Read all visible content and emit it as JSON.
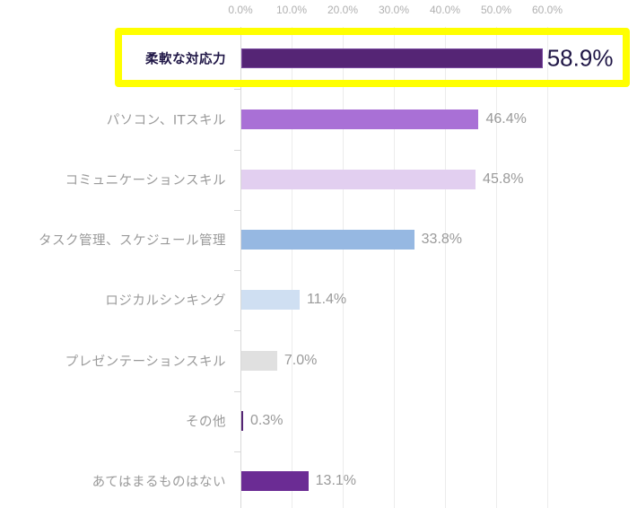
{
  "chart_data": {
    "type": "bar",
    "orientation": "horizontal",
    "title": "",
    "xlabel": "",
    "ylabel": "",
    "xlim": [
      0,
      60
    ],
    "x_ticks": [
      "0.0%",
      "10.0%",
      "20.0%",
      "30.0%",
      "40.0%",
      "50.0%",
      "60.0%"
    ],
    "grid": true,
    "highlighted_category": "柔軟な対応力",
    "categories": [
      "柔軟な対応力",
      "パソコン、ITスキル",
      "コミュニケーションスキル",
      "タスク管理、スケジュール管理",
      "ロジカルシンキング",
      "プレゼンテーションスキル",
      "その他",
      "あてはまるものはない"
    ],
    "values": [
      58.9,
      46.4,
      45.8,
      33.8,
      11.4,
      7.0,
      0.3,
      13.1
    ],
    "value_labels": [
      "58.9%",
      "46.4%",
      "45.8%",
      "33.8%",
      "11.4%",
      "7.0%",
      "0.3%",
      "13.1%"
    ],
    "colors": [
      "#552575",
      "#a970d6",
      "#e2cff0",
      "#96b8e2",
      "#cfdff2",
      "#e0e0e0",
      "#552575",
      "#6b2c94"
    ]
  },
  "colors": {
    "highlight_border": "#ffff00",
    "highlight_text": "#1f1646",
    "label_text": "#9a9a9a",
    "tick_text": "#b0b0b0",
    "gridline": "#ececec"
  }
}
